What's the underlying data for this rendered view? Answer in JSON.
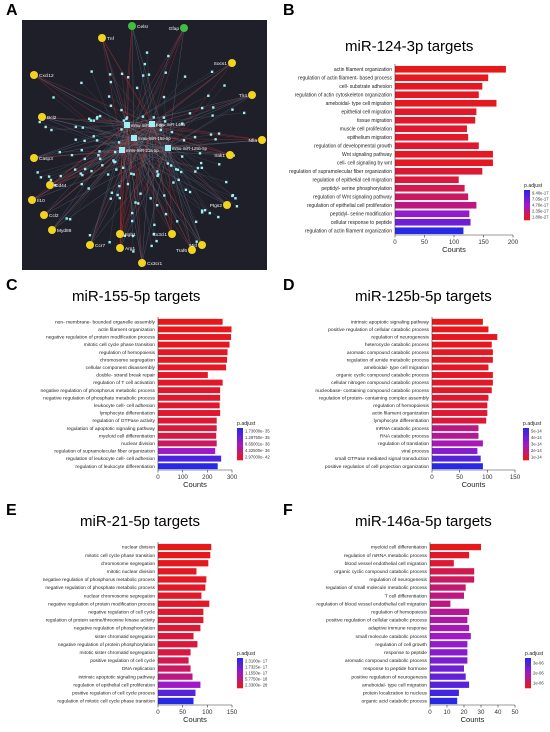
{
  "network": {
    "letter": "A",
    "mirnas": [
      "mmu-miR-124-3p",
      "mmu-miR-146a",
      "mmu-miR-155-5p",
      "mmu-miR-21a-5p",
      "mmu-miR-125b-5p"
    ],
    "genes": [
      "Celsr",
      "Gfap",
      "Tnf",
      "Cxcl12",
      "Socs1",
      "Tlr4",
      "Bcl2",
      "Nfia",
      "Casp3",
      "Cd44",
      "Irak1",
      "Il10",
      "Ccl2",
      "Myd88",
      "Ptgs2",
      "Ccr7",
      "Itgb1",
      "Arg1",
      "Cx3cl1",
      "Traf6",
      "Mitf",
      "Cx3cr1"
    ],
    "colors": {
      "bg": "#1f1f2a",
      "gene": "#f2d41f",
      "mirna": "#9ff0f4",
      "red": "#d03030",
      "edge": "#6f7f8f"
    }
  },
  "colorbar_title": "p.adjust",
  "panels": [
    {
      "letter": "B",
      "title": "miR-124-3p targets",
      "chart_data": {
        "type": "bar",
        "xlabel": "Counts",
        "xlim": [
          0,
          200
        ],
        "xticks": [
          "0",
          "50",
          "100",
          "150",
          "200"
        ],
        "legend_title": "p.adjust",
        "legend_labels": [
          "9.40e-17",
          "7.05e-17",
          "4.70e-17",
          "2.35e-17",
          "1.80e-27"
        ],
        "categories": [
          "actin filament organization",
          "regulation of actin filament- based process",
          "cell- substrate adhesion",
          "regulation of actin cytoskeleton organization",
          "ameboidal- type cell migration",
          "epithelial cell migration",
          "tissue migration",
          "muscle cell proliferation",
          "epithelium migration",
          "regulation of developmental growth",
          "Wnt signaling pathway",
          "cell- cell signaling by wnt",
          "regulation of supramolecular fiber organization",
          "regulation of epithelial cell migration",
          "peptidyl- serine phosphorylation",
          "regulation of Wnt signaling pathway",
          "regulation of epithelial cell proliferation",
          "peptidyl- serine modification",
          "cellular response to peptide",
          "regulation of actin filament organization"
        ],
        "values": [
          188,
          158,
          148,
          142,
          172,
          138,
          136,
          122,
          124,
          142,
          166,
          166,
          148,
          108,
          118,
          124,
          138,
          126,
          128,
          116
        ],
        "padj_rank": [
          0.0,
          0.02,
          0.03,
          0.04,
          0.02,
          0.05,
          0.05,
          0.06,
          0.05,
          0.07,
          0.03,
          0.03,
          0.08,
          0.1,
          0.15,
          0.2,
          0.3,
          0.55,
          0.7,
          1.0
        ]
      }
    },
    {
      "letter": "C",
      "title": "miR-155-5p targets",
      "chart_data": {
        "type": "bar",
        "xlabel": "Counts",
        "xlim": [
          0,
          300
        ],
        "xticks": [
          "0",
          "100",
          "200",
          "300"
        ],
        "legend_title": "p.adjust",
        "legend_labels": [
          "1.73000e- 35",
          "1.29750e- 35",
          "8.65001e- 36",
          "4.32500e- 36",
          "2.97000e- 42"
        ],
        "categories": [
          "non- membrane- bounded organelle assembly",
          "actin filament organization",
          "negative regulation of protein modification process",
          "mitotic cell cycle phase transition",
          "regulation of hemopoiesis",
          "chromosome segregation",
          "cellular component disassembly",
          "double- strand break repair",
          "regulation of T cell activation",
          "negative regulation of phosphorus metabolic process",
          "negative regulation of phosphate metabolic process",
          "leukocyte cell- cell adhesion",
          "lymphocyte differentiation",
          "regulation of GTPase activity",
          "regulation of apoptotic signaling pathway",
          "myeloid cell differentiation",
          "nuclear division",
          "regulation of supramolecular fiber organization",
          "regulation of leukocyte cell- cell adhesion",
          "regulation of leukocyte differentiation"
        ],
        "values": [
          262,
          298,
          296,
          290,
          282,
          280,
          276,
          202,
          262,
          252,
          252,
          250,
          252,
          238,
          238,
          236,
          238,
          232,
          256,
          242
        ],
        "padj_rank": [
          0.0,
          0.01,
          0.02,
          0.02,
          0.03,
          0.03,
          0.04,
          0.05,
          0.05,
          0.06,
          0.06,
          0.07,
          0.07,
          0.08,
          0.1,
          0.12,
          0.2,
          0.5,
          0.85,
          1.0
        ]
      }
    },
    {
      "letter": "D",
      "title": "miR-125b-5p targets",
      "chart_data": {
        "type": "bar",
        "xlabel": "Counts",
        "xlim": [
          0,
          150
        ],
        "xticks": [
          "0",
          "50",
          "100",
          "150"
        ],
        "legend_title": "p.adjust",
        "legend_labels": [
          "5e-14",
          "4e-14",
          "3e-14",
          "2e-14",
          "1e-14"
        ],
        "categories": [
          "intrinsic apoptotic signaling pathway",
          "positive regulation of cellular catabolic process",
          "regulation of neurogenesis",
          "heterocycle catabolic process",
          "aromatic compound catabolic process",
          "regulation of amide metabolic process",
          "ameboidal- type cell migration",
          "organic cyclic compound catabolic process",
          "cellular nitrogen compound catabolic process",
          "nucleobase- containing compound catabolic process",
          "regulation of protein- containing complex assembly",
          "regulation of hemopoiesis",
          "actin filament organization",
          "lymphocyte differentiation",
          "mRNA catabolic process",
          "RNA catabolic process",
          "regulation of translation",
          "viral process",
          "small GTPase mediated signal transduction",
          "positive regulation of cell projection organization"
        ],
        "values": [
          92,
          102,
          118,
          108,
          110,
          110,
          102,
          110,
          110,
          108,
          102,
          100,
          100,
          98,
          84,
          84,
          92,
          82,
          88,
          92
        ],
        "padj_rank": [
          0.0,
          0.01,
          0.02,
          0.02,
          0.03,
          0.03,
          0.04,
          0.04,
          0.05,
          0.05,
          0.06,
          0.07,
          0.08,
          0.1,
          0.3,
          0.35,
          0.45,
          0.6,
          0.8,
          1.0
        ]
      }
    },
    {
      "letter": "E",
      "title": "miR-21-5p targets",
      "chart_data": {
        "type": "bar",
        "xlabel": "Counts",
        "xlim": [
          0,
          150
        ],
        "xticks": [
          "0",
          "50",
          "100",
          "150"
        ],
        "legend_title": "p.adjust",
        "legend_labels": [
          "2.3100e- 17",
          "1.7325e- 17",
          "1.1550e- 17",
          "5.7750e- 18",
          "2.3300e- 28"
        ],
        "categories": [
          "nuclear division",
          "mitotic cell cycle phase transition",
          "chromosome segregation",
          "mitotic nuclear division",
          "negative regulation of phosphorus metabolic process",
          "negative regulation of phosphate metabolic process",
          "nuclear chromosome segregation",
          "negative regulation of protein modification process",
          "negative regulation of cell cycle",
          "regulation of protein serine/threonine kinase activity",
          "negative regulation of phosphorylation",
          "sister chromatid segregation",
          "negative regulation of protein phosphorylation",
          "mitotic sister chromatid segregation",
          "positive regulation of cell cycle",
          "DNA replication",
          "intrinsic apoptotic signaling pathway",
          "regulation of epithelial cell proliferation",
          "positive regulation of cell cycle process",
          "regulation of mitotic cell cycle phase transition"
        ],
        "values": [
          108,
          106,
          102,
          78,
          98,
          96,
          88,
          104,
          92,
          92,
          86,
          72,
          80,
          66,
          62,
          66,
          70,
          86,
          76,
          72
        ],
        "padj_rank": [
          0.0,
          0.01,
          0.02,
          0.03,
          0.03,
          0.04,
          0.05,
          0.05,
          0.06,
          0.07,
          0.08,
          0.1,
          0.1,
          0.12,
          0.15,
          0.2,
          0.3,
          0.5,
          0.8,
          1.0
        ]
      }
    },
    {
      "letter": "F",
      "title": "miR-146a-5p targets",
      "chart_data": {
        "type": "bar",
        "xlabel": "Counts",
        "xlim": [
          0,
          50
        ],
        "xticks": [
          "0",
          "10",
          "20",
          "30",
          "40",
          "50"
        ],
        "legend_title": "p.adjust",
        "legend_labels": [
          "3e-06",
          "2e-06",
          "1e-06"
        ],
        "categories": [
          "myeloid cell differentiation",
          "regulation of mRNA metabolic process",
          "blood vessel endothelial cell migration",
          "organic cyclic compound catabolic process",
          "regulation of neurogenesis",
          "regulation of small molecule metabolic process",
          "T cell differentiation",
          "regulation of blood vessel endothelial cell migration",
          "regulation of hemopoiesis",
          "positive regulation of cellular catabolic process",
          "adaptive immune response",
          "small molecule catabolic process",
          "regulation of cell growth",
          "response to peptide",
          "aromatic compound catabolic process",
          "response to peptide hormone",
          "positive regulation of neurogenesis",
          "ameboidal- type cell migration",
          "protein localization to nucleus",
          "organic acid catabolic process"
        ],
        "values": [
          30,
          23,
          14,
          26,
          26,
          21,
          20,
          12,
          23,
          22,
          23,
          24,
          22,
          22,
          22,
          20,
          21,
          23,
          17,
          16
        ],
        "padj_rank": [
          0.0,
          0.05,
          0.08,
          0.15,
          0.2,
          0.25,
          0.3,
          0.3,
          0.35,
          0.4,
          0.45,
          0.5,
          0.55,
          0.6,
          0.65,
          0.7,
          0.75,
          0.8,
          0.9,
          1.0
        ]
      }
    }
  ]
}
